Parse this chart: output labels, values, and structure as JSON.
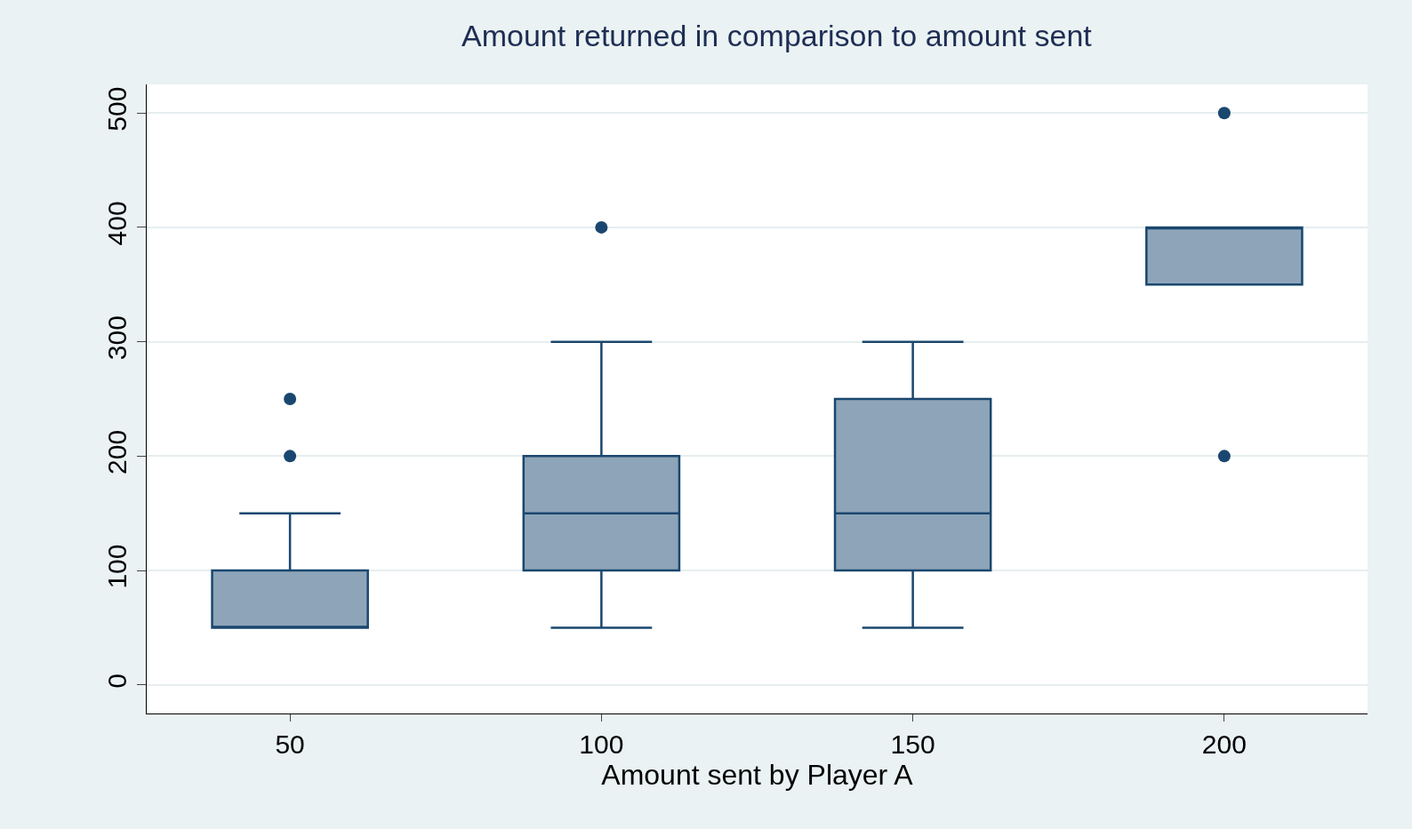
{
  "chart_data": {
    "type": "box",
    "title": "Amount returned in comparison to amount sent",
    "xlabel": "Amount sent by Player A",
    "categories": [
      "50",
      "100",
      "150",
      "200"
    ],
    "boxes": [
      {
        "low": 50,
        "q1": 50,
        "median": 50,
        "q3": 100,
        "high": 150,
        "outliers": [
          200,
          250
        ]
      },
      {
        "low": 50,
        "q1": 100,
        "median": 150,
        "q3": 200,
        "high": 300,
        "outliers": [
          400
        ]
      },
      {
        "low": 50,
        "q1": 100,
        "median": 150,
        "q3": 250,
        "high": 300
      },
      {
        "low": 350,
        "q1": 350,
        "median": 400,
        "q3": 400,
        "high": 400,
        "outliers": [
          200,
          500
        ]
      }
    ],
    "color": "#8ea5b9",
    "ylim": [
      -25,
      525
    ],
    "yticks": [
      0,
      100,
      200,
      300,
      400,
      500
    ],
    "grid": "y"
  }
}
